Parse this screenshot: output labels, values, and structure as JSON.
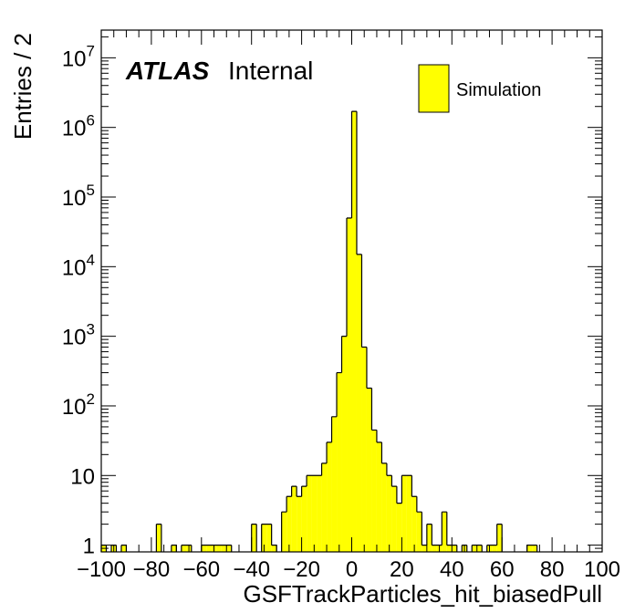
{
  "chart_data": {
    "type": "bar",
    "title": "",
    "xlabel": "GSFTrackParticles_hit_biasedPull",
    "ylabel": "Entries / 2",
    "xlim": [
      -100,
      100
    ],
    "ylim": [
      0.8,
      25000000
    ],
    "yscale": "log",
    "bin_width": 2,
    "x_ticks": [
      "−100",
      "−80",
      "−60",
      "−40",
      "−20",
      "0",
      "20",
      "40",
      "60",
      "80",
      "100"
    ],
    "y_ticks": [
      {
        "base": "1",
        "exp": ""
      },
      {
        "base": "10",
        "exp": ""
      },
      {
        "base": "10",
        "exp": "2"
      },
      {
        "base": "10",
        "exp": "3"
      },
      {
        "base": "10",
        "exp": "4"
      },
      {
        "base": "10",
        "exp": "5"
      },
      {
        "base": "10",
        "exp": "6"
      },
      {
        "base": "10",
        "exp": "7"
      }
    ],
    "atlas_label": "ATLAS",
    "atlas_sublabel": "Internal",
    "legend": [
      {
        "label": "Simulation",
        "color": "#ffff00"
      }
    ],
    "fill_color": "#ffff00",
    "bins": [
      {
        "x": -100,
        "y": 1
      },
      {
        "x": -96,
        "y": 1
      },
      {
        "x": -92,
        "y": 1
      },
      {
        "x": -78,
        "y": 2
      },
      {
        "x": -72,
        "y": 1
      },
      {
        "x": -68,
        "y": 1
      },
      {
        "x": -66,
        "y": 1
      },
      {
        "x": -60,
        "y": 1
      },
      {
        "x": -58,
        "y": 1
      },
      {
        "x": -56,
        "y": 1
      },
      {
        "x": -54,
        "y": 1
      },
      {
        "x": -52,
        "y": 1
      },
      {
        "x": -50,
        "y": 1
      },
      {
        "x": -40,
        "y": 2
      },
      {
        "x": -36,
        "y": 2
      },
      {
        "x": -34,
        "y": 2
      },
      {
        "x": -32,
        "y": 1
      },
      {
        "x": -28,
        "y": 3
      },
      {
        "x": -26,
        "y": 5
      },
      {
        "x": -24,
        "y": 7
      },
      {
        "x": -22,
        "y": 5
      },
      {
        "x": -20,
        "y": 7
      },
      {
        "x": -18,
        "y": 10
      },
      {
        "x": -16,
        "y": 10
      },
      {
        "x": -14,
        "y": 10
      },
      {
        "x": -12,
        "y": 15
      },
      {
        "x": -10,
        "y": 30
      },
      {
        "x": -8,
        "y": 70
      },
      {
        "x": -6,
        "y": 300
      },
      {
        "x": -4,
        "y": 1000
      },
      {
        "x": -2,
        "y": 50000
      },
      {
        "x": 0,
        "y": 1700000
      },
      {
        "x": 2,
        "y": 15000
      },
      {
        "x": 4,
        "y": 700
      },
      {
        "x": 6,
        "y": 180
      },
      {
        "x": 8,
        "y": 45
      },
      {
        "x": 10,
        "y": 30
      },
      {
        "x": 12,
        "y": 15
      },
      {
        "x": 14,
        "y": 10
      },
      {
        "x": 16,
        "y": 7
      },
      {
        "x": 18,
        "y": 4
      },
      {
        "x": 20,
        "y": 10
      },
      {
        "x": 22,
        "y": 10
      },
      {
        "x": 24,
        "y": 5
      },
      {
        "x": 26,
        "y": 3
      },
      {
        "x": 28,
        "y": 1
      },
      {
        "x": 30,
        "y": 2
      },
      {
        "x": 32,
        "y": 1
      },
      {
        "x": 34,
        "y": 1
      },
      {
        "x": 36,
        "y": 3
      },
      {
        "x": 38,
        "y": 1
      },
      {
        "x": 40,
        "y": 1
      },
      {
        "x": 44,
        "y": 1
      },
      {
        "x": 48,
        "y": 1
      },
      {
        "x": 50,
        "y": 1
      },
      {
        "x": 54,
        "y": 1
      },
      {
        "x": 56,
        "y": 1
      },
      {
        "x": 58,
        "y": 2
      },
      {
        "x": 70,
        "y": 1
      },
      {
        "x": 72,
        "y": 1
      }
    ]
  }
}
